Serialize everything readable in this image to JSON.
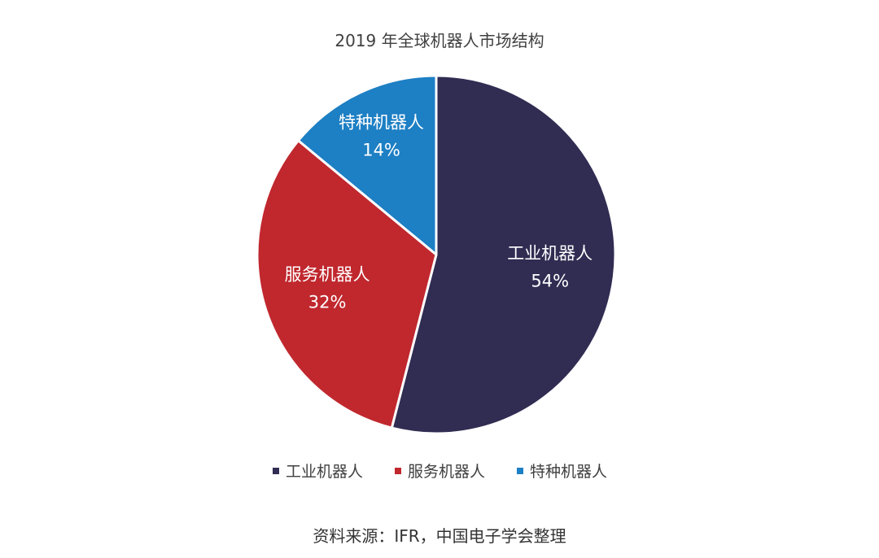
{
  "chart_data": {
    "type": "pie",
    "title": "2019 年全球机器人市场结构",
    "categories": [
      "工业机器人",
      "服务机器人",
      "特种机器人"
    ],
    "values": [
      54,
      32,
      14
    ],
    "value_labels": [
      "54%",
      "32%",
      "14%"
    ],
    "colors": [
      "#302c52",
      "#c0282e",
      "#1d7fc4"
    ],
    "legend_position": "bottom"
  },
  "source_text": "资料来源：IFR，中国电子学会整理"
}
